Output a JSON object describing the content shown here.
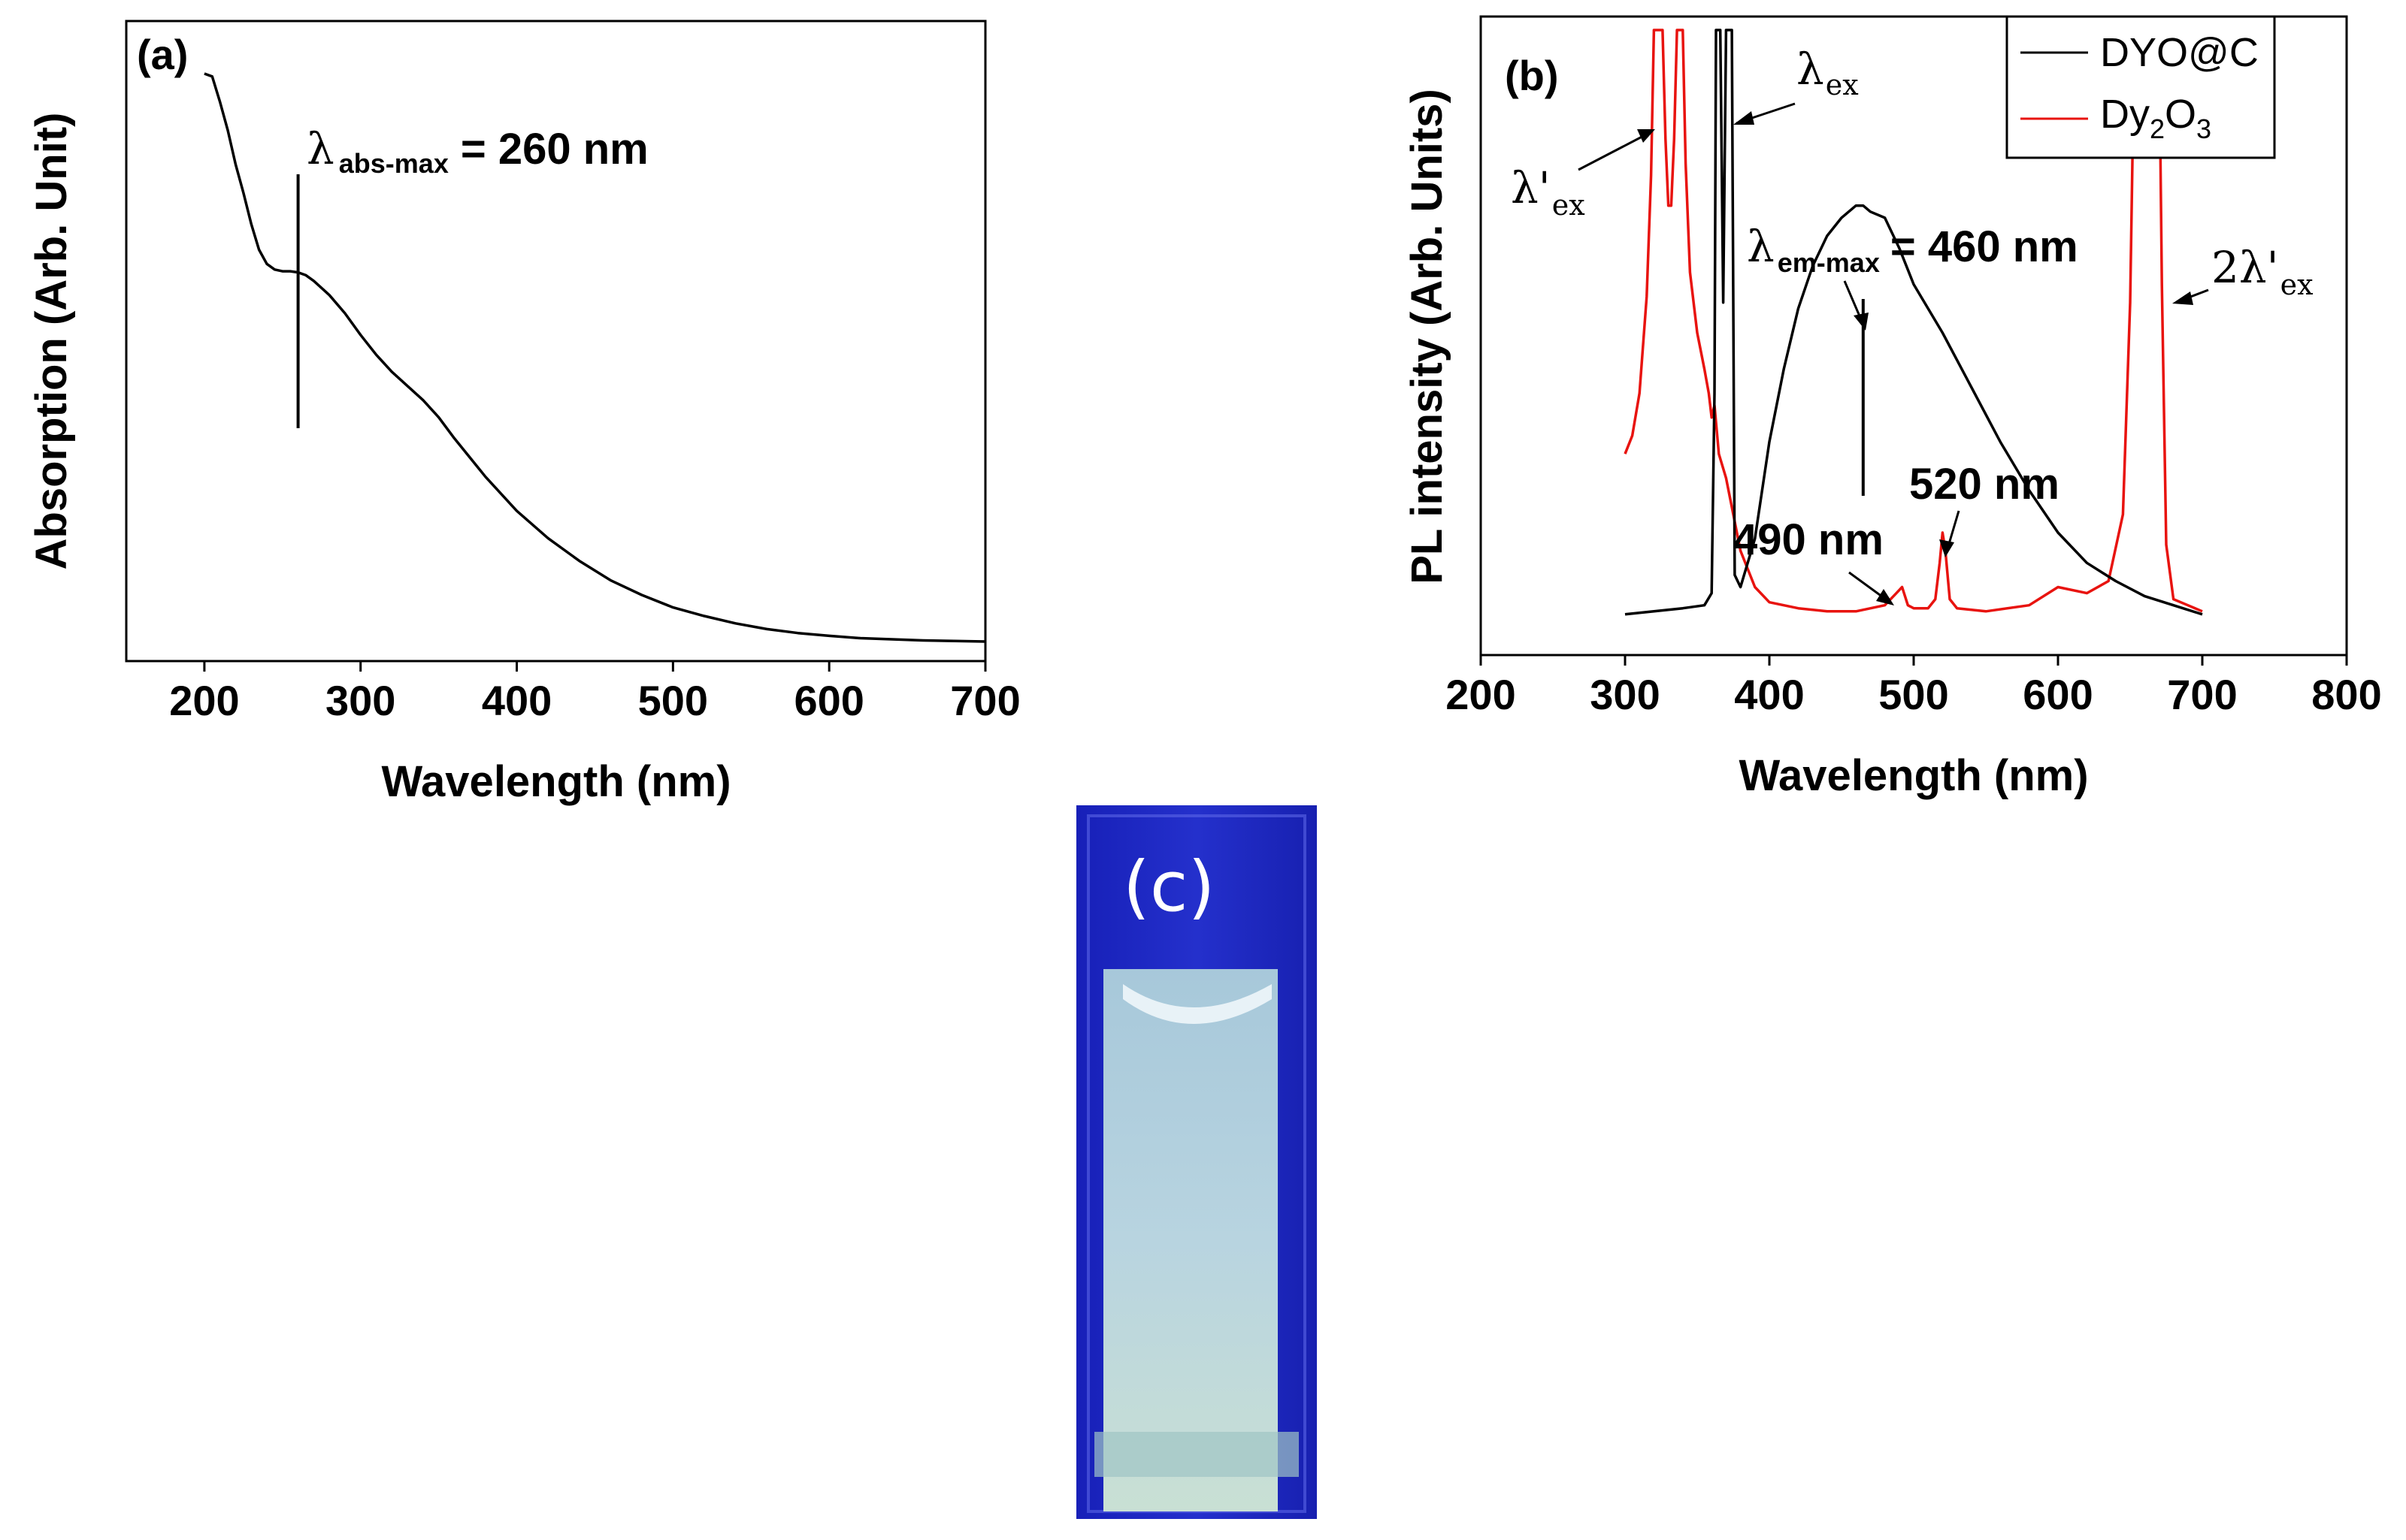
{
  "chart_data": [
    {
      "panel": "(a)",
      "type": "line",
      "xlabel": "Wavelength (nm)",
      "ylabel": "Absorption (Arb. Unit)",
      "xlim": [
        150,
        700
      ],
      "ylim": [
        0,
        1
      ],
      "xticks": [
        200,
        300,
        400,
        500,
        600,
        700
      ],
      "annotation": {
        "symbol": "λ",
        "subscript": "abs-max",
        "text": "= 260 nm",
        "x": 260
      },
      "series": [
        {
          "name": "Absorption",
          "color": "#000000",
          "x": [
            200,
            205,
            210,
            215,
            220,
            225,
            230,
            235,
            240,
            245,
            250,
            255,
            260,
            265,
            270,
            280,
            290,
            300,
            310,
            320,
            330,
            340,
            350,
            360,
            380,
            400,
            420,
            440,
            460,
            480,
            500,
            520,
            540,
            560,
            580,
            600,
            620,
            640,
            660,
            680,
            700
          ],
          "y": [
            1.0,
            0.995,
            0.95,
            0.9,
            0.84,
            0.79,
            0.735,
            0.69,
            0.665,
            0.655,
            0.652,
            0.652,
            0.65,
            0.645,
            0.635,
            0.61,
            0.578,
            0.54,
            0.505,
            0.475,
            0.45,
            0.425,
            0.395,
            0.358,
            0.29,
            0.23,
            0.182,
            0.142,
            0.108,
            0.082,
            0.06,
            0.045,
            0.032,
            0.022,
            0.015,
            0.01,
            0.006,
            0.004,
            0.002,
            0.001,
            0.0
          ]
        }
      ]
    },
    {
      "panel": "(b)",
      "type": "line",
      "xlabel": "Wavelength (nm)",
      "ylabel": "PL intensity (Arb. Units)",
      "xlim": [
        200,
        800
      ],
      "ylim": [
        0,
        100
      ],
      "xticks": [
        200,
        300,
        400,
        500,
        600,
        700,
        800
      ],
      "legend": {
        "position": "top-right",
        "entries": [
          {
            "label": "DYO@C",
            "color": "#000000"
          },
          {
            "label": "Dy",
            "sub1": "2",
            "mid": "O",
            "sub2": "3",
            "color": "#e8130f"
          }
        ]
      },
      "annotations": {
        "lambda_ex": {
          "symbol": "λ",
          "subscript": "ex"
        },
        "lambda_ex_prime": {
          "symbol": "λ'",
          "subscript": "ex"
        },
        "two_lambda_ex_prime": {
          "symbol": "2λ'",
          "subscript": "ex"
        },
        "em_max": {
          "symbol": "λ",
          "subscript": "em-max",
          "text": "= 460 nm",
          "x": 465
        },
        "peak_490": "490 nm",
        "peak_520": "520 nm"
      },
      "series": [
        {
          "name": "DYO@C",
          "color": "#000000",
          "x": [
            300,
            320,
            340,
            355,
            360,
            362,
            363,
            364,
            366,
            368,
            370,
            372,
            373,
            374,
            376,
            380,
            390,
            400,
            410,
            420,
            430,
            440,
            450,
            460,
            465,
            470,
            480,
            490,
            500,
            520,
            540,
            560,
            580,
            600,
            620,
            640,
            660,
            680,
            700
          ],
          "y": [
            3.5,
            4.0,
            4.5,
            5.0,
            7.0,
            40,
            100,
            100,
            100,
            55,
            100,
            100,
            100,
            100,
            10,
            8,
            16,
            32,
            44,
            54,
            61,
            66,
            69,
            71,
            71,
            70,
            69,
            64,
            58,
            50,
            41,
            32,
            24,
            17,
            12,
            9,
            6.5,
            5,
            3.5
          ]
        },
        {
          "name": "Dy2O3",
          "color": "#e8130f",
          "x": [
            300,
            305,
            310,
            315,
            318,
            320,
            321,
            322,
            324,
            326,
            328,
            330,
            332,
            334,
            336,
            337,
            338,
            340,
            342,
            345,
            350,
            355,
            358,
            360,
            362,
            365,
            370,
            380,
            390,
            400,
            420,
            440,
            460,
            480,
            488,
            492,
            496,
            500,
            510,
            515,
            518,
            520,
            522,
            525,
            530,
            550,
            580,
            600,
            620,
            635,
            645,
            650,
            653,
            655,
            660,
            665,
            668,
            670,
            672,
            675,
            680,
            690,
            700
          ],
          "y": [
            30,
            33,
            40,
            56,
            76,
            100,
            100,
            100,
            100,
            100,
            82,
            71,
            71,
            82,
            100,
            100,
            100,
            100,
            78,
            60,
            50,
            44,
            40,
            36,
            38,
            30,
            26,
            14,
            8,
            5.5,
            4.5,
            4,
            4,
            5,
            7,
            8,
            5,
            4.5,
            4.5,
            6,
            12,
            17,
            14,
            6,
            4.5,
            4,
            5,
            8,
            7,
            9,
            20,
            55,
            100,
            100,
            100,
            100,
            100,
            100,
            58,
            15,
            6,
            5,
            4
          ]
        }
      ]
    }
  ],
  "photo": {
    "label": "(c)",
    "glass_color": "#1c24c0",
    "liquid_color": "#b6d3df"
  }
}
